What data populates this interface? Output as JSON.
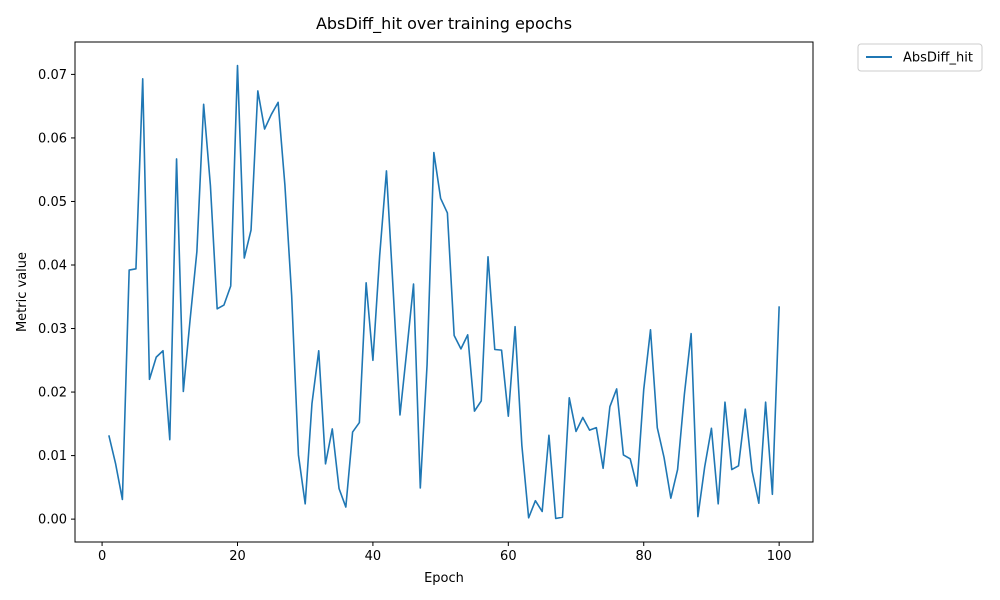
{
  "chart_data": {
    "type": "line",
    "title": "AbsDiff_hit over training epochs",
    "xlabel": "Epoch",
    "ylabel": "Metric value",
    "xlim": [
      -4,
      105
    ],
    "ylim": [
      -0.0036,
      0.0751
    ],
    "xticks": [
      0,
      20,
      40,
      60,
      80,
      100
    ],
    "xtick_labels": [
      "0",
      "20",
      "40",
      "60",
      "80",
      "100"
    ],
    "yticks": [
      0.0,
      0.01,
      0.02,
      0.03,
      0.04,
      0.05,
      0.06,
      0.07
    ],
    "ytick_labels": [
      "0.00",
      "0.01",
      "0.02",
      "0.03",
      "0.04",
      "0.05",
      "0.06",
      "0.07"
    ],
    "grid": false,
    "legend_position": "outside-top-right",
    "line_color": "#1f77b4",
    "series": [
      {
        "name": "AbsDiff_hit",
        "x": [
          1,
          2,
          3,
          4,
          5,
          6,
          7,
          8,
          9,
          10,
          11,
          12,
          13,
          14,
          15,
          16,
          17,
          18,
          19,
          20,
          21,
          22,
          23,
          24,
          25,
          26,
          27,
          28,
          29,
          30,
          31,
          32,
          33,
          34,
          35,
          36,
          37,
          38,
          39,
          40,
          41,
          42,
          43,
          44,
          45,
          46,
          47,
          48,
          49,
          50,
          51,
          52,
          53,
          54,
          55,
          56,
          57,
          58,
          59,
          60,
          61,
          62,
          63,
          64,
          65,
          66,
          67,
          68,
          69,
          70,
          71,
          72,
          73,
          74,
          75,
          76,
          77,
          78,
          79,
          80,
          81,
          82,
          83,
          84,
          85,
          86,
          87,
          88,
          89,
          90,
          91,
          92,
          93,
          94,
          95,
          96,
          97,
          98,
          99,
          100
        ],
        "y": [
          0.0132,
          0.0087,
          0.0031,
          0.0392,
          0.0394,
          0.0693,
          0.022,
          0.0255,
          0.0265,
          0.0125,
          0.0567,
          0.0201,
          0.0314,
          0.0421,
          0.0653,
          0.0525,
          0.0331,
          0.0337,
          0.0367,
          0.0714,
          0.0411,
          0.0455,
          0.0674,
          0.0614,
          0.0637,
          0.0656,
          0.0526,
          0.0352,
          0.0101,
          0.0024,
          0.0182,
          0.0265,
          0.0087,
          0.0142,
          0.0048,
          0.0019,
          0.0137,
          0.0152,
          0.0372,
          0.025,
          0.0415,
          0.0548,
          0.0359,
          0.0164,
          0.0265,
          0.037,
          0.0049,
          0.0243,
          0.0577,
          0.0505,
          0.0482,
          0.0289,
          0.0268,
          0.029,
          0.017,
          0.0186,
          0.0413,
          0.0267,
          0.0266,
          0.0162,
          0.0303,
          0.0116,
          0.0002,
          0.0029,
          0.0012,
          0.0132,
          0.0001,
          0.0003,
          0.0191,
          0.0138,
          0.016,
          0.014,
          0.0144,
          0.008,
          0.0177,
          0.0205,
          0.0101,
          0.0095,
          0.0052,
          0.0204,
          0.0298,
          0.0144,
          0.0097,
          0.0033,
          0.0078,
          0.0196,
          0.0292,
          0.0004,
          0.0082,
          0.0143,
          0.0024,
          0.0184,
          0.0078,
          0.0084,
          0.0173,
          0.0076,
          0.0025,
          0.0184,
          0.0039,
          0.0335
        ]
      }
    ]
  }
}
